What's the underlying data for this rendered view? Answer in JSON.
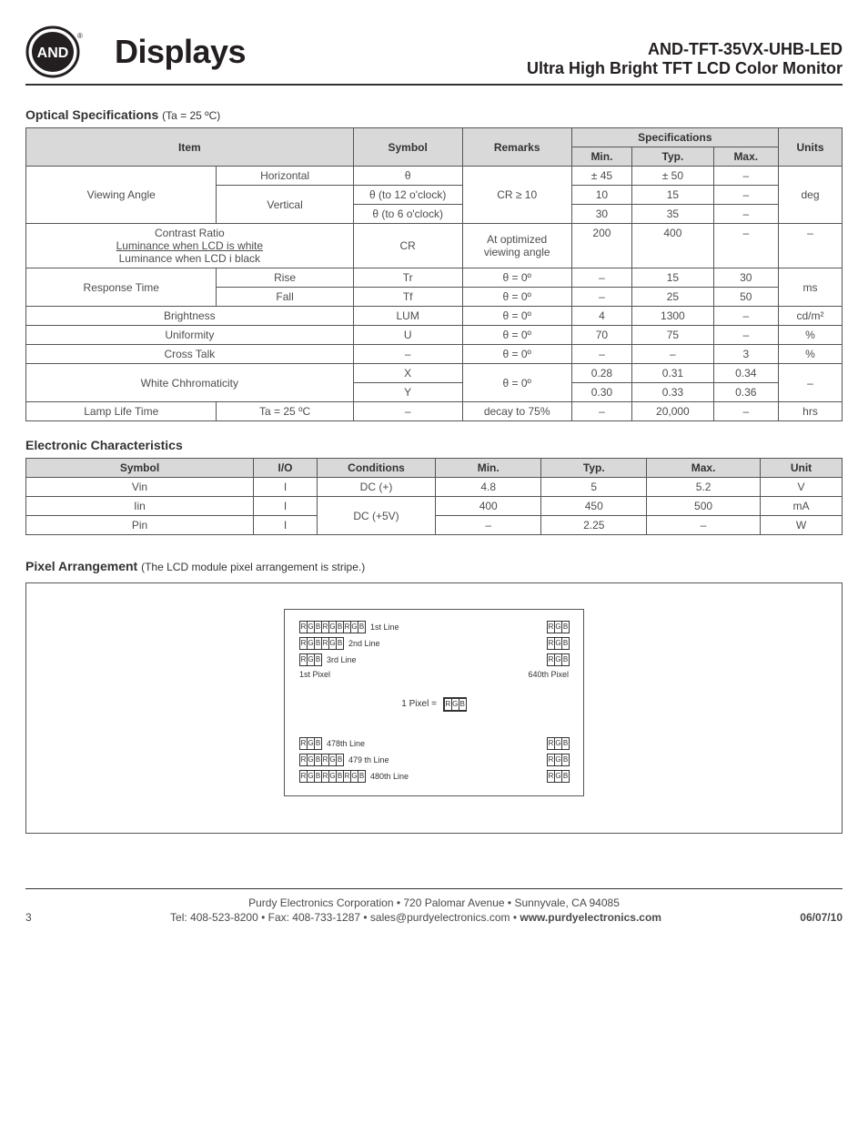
{
  "header": {
    "logo_brand": "AND",
    "logo_word": "Displays",
    "model": "AND-TFT-35VX-UHB-LED",
    "subtitle": "Ultra High Bright TFT LCD Color Monitor"
  },
  "optical": {
    "title": "Optical Specifications",
    "note": "(Ta = 25 ºC)",
    "columns": [
      "Item",
      "Symbol",
      "Remarks",
      "Min.",
      "Typ.",
      "Max.",
      "Units"
    ],
    "spec_header": "Specifications",
    "rows": [
      {
        "item": "Viewing Angle",
        "sub": "Horizontal",
        "symbol": "θ",
        "remarks": "CR ≥ 10",
        "min": "± 45",
        "typ": "± 50",
        "max": "–",
        "units": "deg",
        "itemRowspan": 3,
        "remarksRowspan": 3,
        "unitsRowspan": 3
      },
      {
        "sub": "Vertical",
        "symbol": "θ  (to 12 o'clock)",
        "min": "10",
        "typ": "15",
        "max": "–",
        "subRowspan": 2
      },
      {
        "symbol": "θ  (to 6 o'clock)",
        "min": "30",
        "typ": "35",
        "max": "–"
      },
      {
        "item_html": "Contrast Ratio\nLuminance when LCD is white\nLuminance when LCD i black",
        "symbol": "CR",
        "remarks": "At optimized viewing angle",
        "min": "200",
        "typ": "400",
        "max": "–",
        "units": "–",
        "itemColspan": 2,
        "itemStyle": "ratio"
      },
      {
        "item": "Response Time",
        "sub": "Rise",
        "symbol": "Tr",
        "remarks": "θ = 0º",
        "min": "–",
        "typ": "15",
        "max": "30",
        "units": "ms",
        "itemRowspan": 2,
        "unitsRowspan": 2
      },
      {
        "sub": "Fall",
        "symbol": "Tf",
        "remarks": "θ = 0º",
        "min": "–",
        "typ": "25",
        "max": "50"
      },
      {
        "item": "Brightness",
        "symbol": "LUM",
        "remarks": "θ = 0º",
        "min": "4",
        "typ": "1300",
        "max": "–",
        "units": "cd/m²",
        "itemColspan": 2
      },
      {
        "item": "Uniformity",
        "symbol": "U",
        "remarks": "θ = 0º",
        "min": "70",
        "typ": "75",
        "max": "–",
        "units": "%",
        "itemColspan": 2
      },
      {
        "item": "Cross Talk",
        "symbol": "–",
        "remarks": "θ = 0º",
        "min": "–",
        "typ": "–",
        "max": "3",
        "units": "%",
        "itemColspan": 2
      },
      {
        "item": "White Chhromaticity",
        "symbol": "X",
        "remarks": "θ = 0º",
        "min": "0.28",
        "typ": "0.31",
        "max": "0.34",
        "units": "–",
        "itemRowspan": 2,
        "itemColspan": 2,
        "remarksRowspan": 2,
        "unitsRowspan": 2
      },
      {
        "symbol": "Y",
        "min": "0.30",
        "typ": "0.33",
        "max": "0.36"
      },
      {
        "item": "Lamp Life Time",
        "sub": "Ta = 25 ºC",
        "symbol": "–",
        "remarks": "decay to 75%",
        "min": "–",
        "typ": "20,000",
        "max": "–",
        "units": "hrs"
      }
    ]
  },
  "electronic": {
    "title": "Electronic Characteristics",
    "columns": [
      "Symbol",
      "I/O",
      "Conditions",
      "Min.",
      "Typ.",
      "Max.",
      "Unit"
    ],
    "rows": [
      {
        "symbol": "Vin",
        "io": "I",
        "cond": "DC (+)",
        "min": "4.8",
        "typ": "5",
        "max": "5.2",
        "unit": "V"
      },
      {
        "symbol": "Iin",
        "io": "I",
        "cond": "DC (+5V)",
        "min": "400",
        "typ": "450",
        "max": "500",
        "unit": "mA",
        "condRowspan": 2
      },
      {
        "symbol": "Pin",
        "io": "I",
        "min": "–",
        "typ": "2.25",
        "max": "–",
        "unit": "W"
      }
    ]
  },
  "pixel": {
    "title": "Pixel Arrangement",
    "note": "(The LCD module pixel arrangement is stripe.)",
    "lines": {
      "l1": "1st Line",
      "l2": "2nd Line",
      "l3": "3rd Line",
      "firstPixel": "1st Pixel",
      "lastPixel": "640th Pixel",
      "onePixel": "1 Pixel =",
      "l478": "478th Line",
      "l479": "479 th Line",
      "l480": "480th Line"
    },
    "rgb": [
      "R",
      "G",
      "B"
    ]
  },
  "footer": {
    "line1": "Purdy Electronics Corporation  •  720 Palomar Avenue  •  Sunnyvale,  CA 94085",
    "line2_prefix": "Tel: 408-523-8200  •  Fax: 408-733-1287  •  sales@purdyelectronics.com  •  ",
    "line2_site": "www.purdyelectronics.com",
    "page": "3",
    "date": "06/07/10"
  },
  "style": {
    "header_bg": "#d9d9d9",
    "border_color": "#555555",
    "text_color": "#4d4d4d"
  }
}
